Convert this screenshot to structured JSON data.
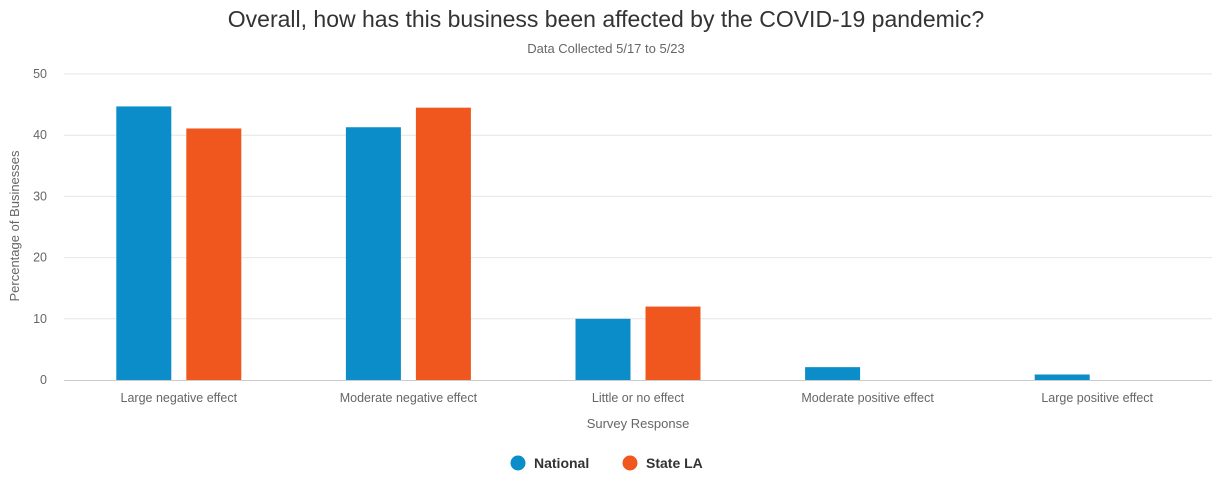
{
  "chart_data": {
    "type": "bar",
    "title": "Overall, how has this business been affected by the COVID-19 pandemic?",
    "subtitle": "Data Collected 5/17 to 5/23",
    "xlabel": "Survey Response",
    "ylabel": "Percentage of Businesses",
    "ylim": [
      0,
      50
    ],
    "yticks": [
      0,
      10,
      20,
      30,
      40,
      50
    ],
    "grid": true,
    "legend_position": "bottom-center",
    "categories": [
      "Large negative effect",
      "Moderate negative effect",
      "Little or no effect",
      "Moderate positive effect",
      "Large positive effect"
    ],
    "series": [
      {
        "name": "National",
        "color": "#0a8dc8",
        "values": [
          44.7,
          41.3,
          10.0,
          2.1,
          0.9
        ]
      },
      {
        "name": "State LA",
        "color": "#ef571f",
        "values": [
          41.1,
          44.5,
          12.0,
          0,
          0
        ]
      }
    ]
  }
}
